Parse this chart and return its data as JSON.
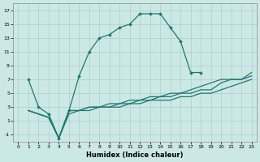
{
  "xlabel": "Humidex (Indice chaleur)",
  "xlim": [
    -0.5,
    23.5
  ],
  "ylim": [
    -2,
    18
  ],
  "xticks": [
    0,
    1,
    2,
    3,
    4,
    5,
    6,
    7,
    8,
    9,
    10,
    11,
    12,
    13,
    14,
    15,
    16,
    17,
    18,
    19,
    20,
    21,
    22,
    23
  ],
  "yticks": [
    -1,
    1,
    3,
    5,
    7,
    9,
    11,
    13,
    15,
    17
  ],
  "background_color": "#cce8e5",
  "grid_color": "#aacfcc",
  "line_color": "#1d7872",
  "curve1_x": [
    1,
    2,
    3,
    4,
    5,
    6,
    7,
    8,
    9,
    10,
    11,
    12,
    13,
    14,
    15,
    16,
    17,
    18
  ],
  "curve1_y": [
    7,
    3,
    2,
    -1.5,
    2.5,
    7.5,
    11,
    13,
    13.5,
    14.5,
    15,
    16.5,
    16.5,
    16.5,
    14.5,
    12.5,
    8,
    8
  ],
  "curve2_x": [
    1,
    2,
    3,
    4,
    5,
    6,
    7,
    8,
    9,
    10,
    11,
    12,
    13,
    14,
    15,
    16,
    17,
    18,
    19,
    20,
    21,
    22,
    23
  ],
  "curve2_y": [
    2.5,
    2,
    1.5,
    -1.5,
    2.5,
    2.5,
    3,
    3,
    3.5,
    3.5,
    4,
    4,
    4.5,
    4.5,
    5,
    5,
    5.5,
    6,
    6.5,
    7,
    7,
    7,
    8
  ],
  "curve3_x": [
    1,
    2,
    3,
    4,
    5,
    6,
    7,
    8,
    9,
    10,
    11,
    12,
    13,
    14,
    15,
    16,
    17,
    18,
    19,
    20,
    21,
    22,
    23
  ],
  "curve3_y": [
    2.5,
    2,
    1.5,
    -1.5,
    2.5,
    2.5,
    3,
    3,
    3,
    3.5,
    3.5,
    4,
    4,
    4.5,
    4.5,
    5,
    5,
    5.5,
    5.5,
    6.5,
    7,
    7,
    7.5
  ],
  "curve4_x": [
    1,
    2,
    3,
    4,
    5,
    6,
    7,
    8,
    9,
    10,
    11,
    12,
    13,
    14,
    15,
    16,
    17,
    18,
    19,
    20,
    21,
    22,
    23
  ],
  "curve4_y": [
    2.5,
    2,
    1.5,
    -1.5,
    2,
    2.5,
    2.5,
    3,
    3,
    3,
    3.5,
    3.5,
    4,
    4,
    4,
    4.5,
    4.5,
    5,
    5,
    5.5,
    6,
    6.5,
    7
  ]
}
